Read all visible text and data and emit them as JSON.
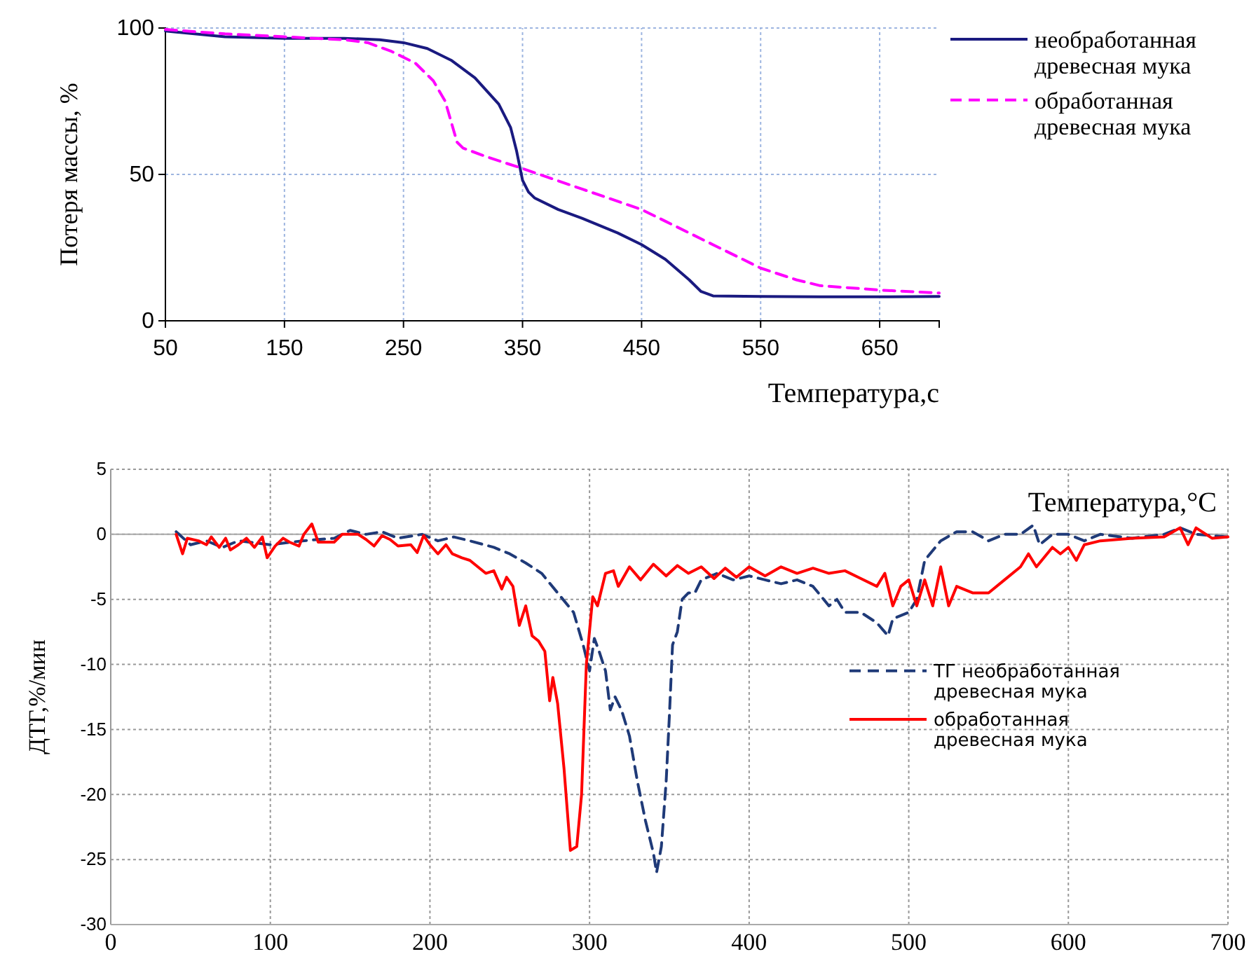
{
  "chart_data": [
    {
      "type": "line",
      "xlabel": "Температура,с",
      "ylabel": "Потеря массы, %",
      "xlim": [
        50,
        700
      ],
      "ylim": [
        0,
        100
      ],
      "xticks": [
        50,
        150,
        250,
        350,
        450,
        550,
        650
      ],
      "yticks": [
        0,
        50,
        100
      ],
      "grid": true,
      "legend": "right",
      "series": [
        {
          "name": "необработанная древесная мука",
          "color": "#1a1a80",
          "line_style": "solid",
          "x": [
            50,
            100,
            150,
            200,
            230,
            250,
            270,
            290,
            310,
            330,
            340,
            345,
            350,
            355,
            360,
            380,
            400,
            430,
            450,
            470,
            490,
            500,
            510,
            550,
            600,
            650,
            700
          ],
          "values": [
            99,
            97,
            96.5,
            96.5,
            96,
            95,
            93,
            89,
            83,
            74,
            66,
            58,
            48,
            44,
            42,
            38,
            35,
            30,
            26,
            21,
            14,
            10,
            8.5,
            8.3,
            8.2,
            8.2,
            8.3
          ]
        },
        {
          "name": "обработанная древесная мука",
          "color": "#ff00ff",
          "line_style": "dashed",
          "x": [
            50,
            100,
            150,
            200,
            220,
            240,
            260,
            275,
            285,
            290,
            295,
            300,
            320,
            350,
            400,
            450,
            470,
            500,
            520,
            550,
            580,
            600,
            650,
            700
          ],
          "values": [
            99.5,
            98,
            97,
            96,
            95,
            92,
            88,
            82,
            75,
            68,
            61,
            59,
            56,
            52,
            45,
            38,
            34,
            28,
            24,
            18,
            14,
            12,
            10.5,
            9.5
          ]
        }
      ]
    },
    {
      "type": "line",
      "xlabel": "Температура,°С",
      "ylabel": "ДТГ,%/мин",
      "xlim": [
        0,
        700
      ],
      "ylim": [
        -30,
        5
      ],
      "xticks": [
        0,
        100,
        200,
        300,
        400,
        500,
        600,
        700
      ],
      "yticks": [
        -30,
        -25,
        -20,
        -15,
        -10,
        -5,
        0,
        5
      ],
      "grid": true,
      "legend": "right",
      "series": [
        {
          "name": "ТГ необработанная древесная мука",
          "color": "#1f3a78",
          "line_style": "dashed",
          "x": [
            41,
            50,
            60,
            70,
            80,
            100,
            120,
            140,
            150,
            160,
            170,
            180,
            195,
            205,
            215,
            225,
            240,
            250,
            260,
            270,
            280,
            290,
            296,
            300,
            303,
            306,
            310,
            313,
            316,
            320,
            325,
            330,
            335,
            340,
            342,
            345,
            348,
            350,
            352,
            355,
            358,
            362,
            366,
            370,
            380,
            390,
            400,
            410,
            420,
            430,
            440,
            450,
            455,
            460,
            470,
            480,
            487,
            490,
            500,
            505,
            510,
            520,
            530,
            540,
            550,
            560,
            570,
            578,
            582,
            590,
            600,
            610,
            620,
            640,
            660,
            670,
            680,
            700
          ],
          "values": [
            0.2,
            -0.8,
            -0.5,
            -1.0,
            -0.5,
            -0.8,
            -0.5,
            -0.3,
            0.3,
            0,
            0.2,
            -0.3,
            0,
            -0.5,
            -0.2,
            -0.5,
            -1.0,
            -1.5,
            -2.2,
            -3.0,
            -4.5,
            -6.0,
            -8.5,
            -10.5,
            -8,
            -9,
            -10.5,
            -13.5,
            -12.5,
            -13.5,
            -15.5,
            -19,
            -22,
            -24.5,
            -26,
            -24,
            -19,
            -14,
            -8.5,
            -7.5,
            -5,
            -4.5,
            -4.5,
            -3.5,
            -3.0,
            -3.5,
            -3.2,
            -3.5,
            -3.8,
            -3.5,
            -4.0,
            -5.5,
            -5.0,
            -6.0,
            -6.0,
            -6.8,
            -7.8,
            -6.5,
            -6.0,
            -5,
            -2.0,
            -0.5,
            0.2,
            0.2,
            -0.5,
            0,
            0,
            0.7,
            -0.8,
            0,
            0,
            -0.5,
            0,
            -0.3,
            0,
            0.5,
            0,
            -0.2
          ]
        },
        {
          "name": "обработанная древесная мука",
          "color": "#ff0000",
          "line_style": "solid",
          "x": [
            41,
            45,
            48,
            55,
            60,
            63,
            68,
            72,
            75,
            80,
            85,
            90,
            95,
            98,
            103,
            108,
            112,
            118,
            121,
            126,
            130,
            140,
            145,
            155,
            160,
            165,
            170,
            175,
            180,
            188,
            192,
            196,
            200,
            205,
            210,
            214,
            220,
            225,
            235,
            240,
            245,
            248,
            252,
            256,
            260,
            264,
            268,
            272,
            275,
            277,
            280,
            284,
            288,
            292,
            295,
            298,
            302,
            305,
            310,
            315,
            318,
            325,
            332,
            340,
            348,
            355,
            362,
            370,
            378,
            385,
            392,
            400,
            410,
            420,
            430,
            440,
            450,
            460,
            470,
            480,
            485,
            490,
            495,
            500,
            505,
            510,
            515,
            520,
            525,
            530,
            540,
            550,
            560,
            570,
            575,
            580,
            590,
            595,
            600,
            605,
            610,
            620,
            640,
            660,
            670,
            675,
            680,
            690,
            700
          ],
          "values": [
            0,
            -1.5,
            -0.3,
            -0.5,
            -0.8,
            -0.2,
            -1.0,
            -0.3,
            -1.2,
            -0.8,
            -0.3,
            -1.0,
            -0.2,
            -1.8,
            -0.9,
            -0.3,
            -0.6,
            -0.9,
            0,
            0.8,
            -0.6,
            -0.6,
            0,
            0,
            -0.4,
            -0.9,
            -0.1,
            -0.4,
            -0.9,
            -0.8,
            -1.4,
            -0.1,
            -0.8,
            -1.5,
            -0.8,
            -1.5,
            -1.8,
            -2.0,
            -3.0,
            -2.8,
            -4.2,
            -3.3,
            -4.0,
            -7.0,
            -5.5,
            -7.8,
            -8.2,
            -9.0,
            -12.8,
            -11.0,
            -13.0,
            -18,
            -24.3,
            -24.0,
            -20,
            -10,
            -4.8,
            -5.5,
            -3.0,
            -2.8,
            -4.0,
            -2.5,
            -3.5,
            -2.3,
            -3.2,
            -2.4,
            -3.0,
            -2.5,
            -3.4,
            -2.6,
            -3.3,
            -2.5,
            -3.2,
            -2.5,
            -3.0,
            -2.6,
            -3.0,
            -2.8,
            -3.4,
            -4.0,
            -3.0,
            -5.5,
            -4.0,
            -3.5,
            -5.5,
            -3.5,
            -5.5,
            -2.5,
            -5.5,
            -4.0,
            -4.5,
            -4.5,
            -3.5,
            -2.5,
            -1.5,
            -2.5,
            -1.0,
            -1.5,
            -1.0,
            -2.0,
            -0.8,
            -0.5,
            -0.3,
            -0.2,
            0.5,
            -0.8,
            0.5,
            -0.3,
            -0.2
          ]
        }
      ]
    }
  ]
}
